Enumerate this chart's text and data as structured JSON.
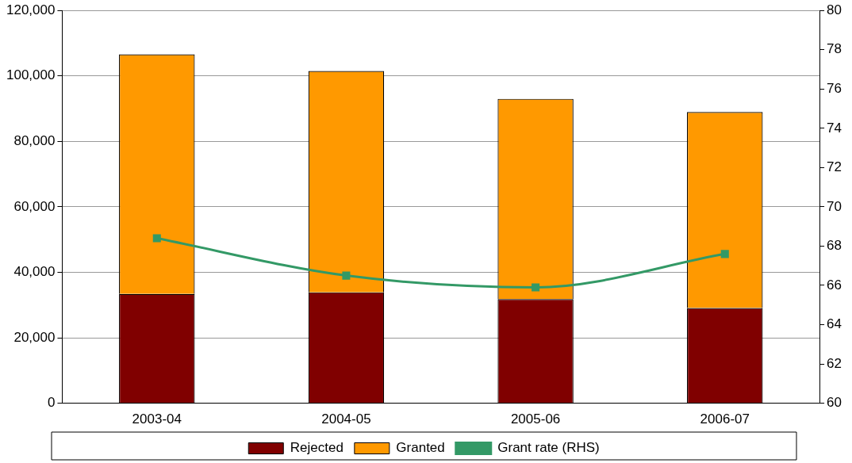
{
  "chart_data": {
    "type": "bar",
    "stacked": true,
    "categories": [
      "2003-04",
      "2004-05",
      "2005-06",
      "2006-07"
    ],
    "series": [
      {
        "name": "Rejected",
        "color": "#800000",
        "values": [
          33400,
          33900,
          31800,
          29100
        ]
      },
      {
        "name": "Granted",
        "color": "#ff9900",
        "values": [
          73200,
          67600,
          61200,
          59900
        ]
      },
      {
        "name": "Grant rate (RHS)",
        "type": "line",
        "axis": "y2",
        "color": "#339966",
        "marker": "square",
        "values": [
          68.4,
          66.5,
          65.9,
          67.6
        ]
      }
    ],
    "ylim": [
      0,
      120000
    ],
    "yticks": [
      {
        "value": 0,
        "label": "0"
      },
      {
        "value": 20000,
        "label": "20,000"
      },
      {
        "value": 40000,
        "label": "40,000"
      },
      {
        "value": 60000,
        "label": "60,000"
      },
      {
        "value": 80000,
        "label": "80,000"
      },
      {
        "value": 100000,
        "label": "100,000"
      },
      {
        "value": 120000,
        "label": "120,000"
      }
    ],
    "y2lim": [
      60,
      80
    ],
    "y2ticks": [
      60,
      62,
      64,
      66,
      68,
      70,
      72,
      74,
      76,
      78,
      80
    ],
    "grid": "y",
    "legend": "bottom"
  }
}
